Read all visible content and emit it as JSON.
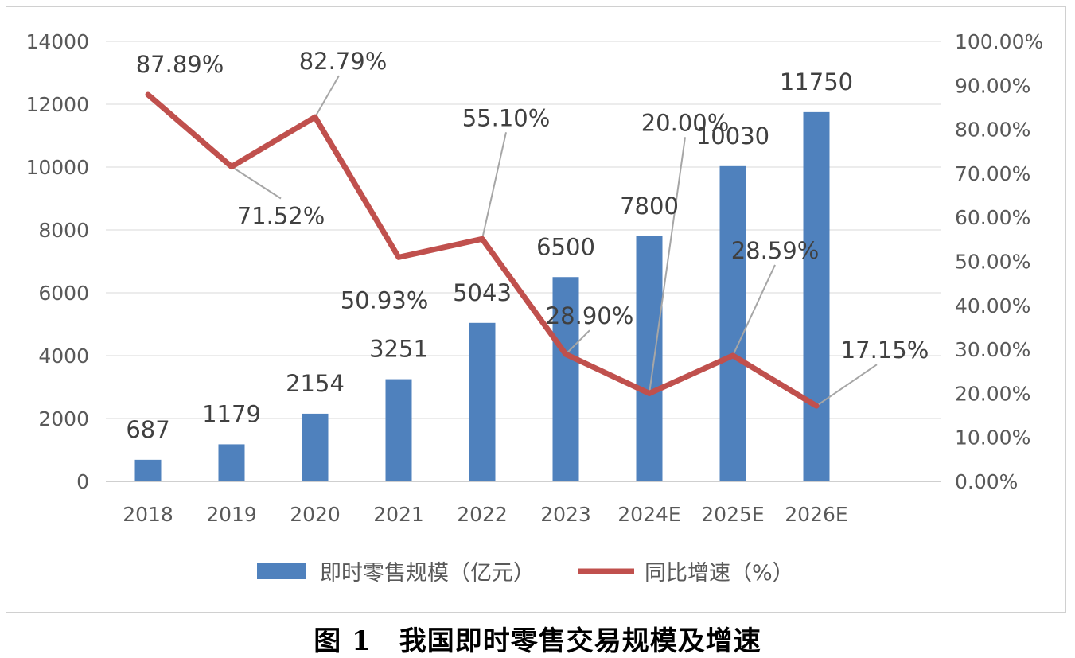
{
  "chart_data": {
    "type": "bar+line",
    "categories": [
      "2018",
      "2019",
      "2020",
      "2021",
      "2022",
      "2023",
      "2024E",
      "2025E",
      "2026E"
    ],
    "series": [
      {
        "name": "即时零售规模（亿元）",
        "type": "bar",
        "axis": "left",
        "color": "#4f81bd",
        "values": [
          687,
          1179,
          2154,
          3251,
          5043,
          6500,
          7800,
          10030,
          11750
        ],
        "labels": [
          "687",
          "1179",
          "2154",
          "3251",
          "5043",
          "6500",
          "7800",
          "10030",
          "11750"
        ]
      },
      {
        "name": "同比增速（%）",
        "type": "line",
        "axis": "right",
        "color": "#c0504d",
        "values": [
          87.89,
          71.52,
          82.79,
          50.93,
          55.1,
          28.9,
          20.0,
          28.59,
          17.15
        ],
        "labels": [
          "87.89%",
          "71.52%",
          "82.79%",
          "50.93%",
          "55.10%",
          "28.90%",
          "20.00%",
          "28.59%",
          "17.15%"
        ]
      }
    ],
    "y_left": {
      "range": [
        0,
        14000
      ],
      "ticks": [
        "0",
        "2000",
        "4000",
        "6000",
        "8000",
        "10000",
        "12000",
        "14000"
      ]
    },
    "y_right": {
      "range": [
        0,
        100
      ],
      "ticks": [
        "0.00%",
        "10.00%",
        "20.00%",
        "30.00%",
        "40.00%",
        "50.00%",
        "60.00%",
        "70.00%",
        "80.00%",
        "90.00%",
        "100.00%"
      ]
    },
    "grid": true,
    "legend_position": "bottom"
  },
  "caption": "图 1　我国即时零售交易规模及增速"
}
